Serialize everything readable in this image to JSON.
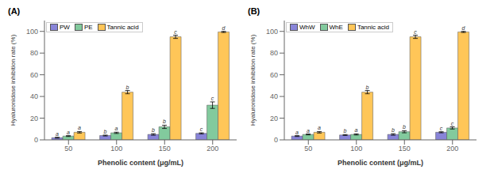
{
  "chart_data": [
    {
      "type": "bar",
      "title": "(A)",
      "xlabel": "Phenolic  content (μg/mL)",
      "ylabel": "Hyaluronidase inhibition rate (%)",
      "categories": [
        "50",
        "100",
        "150",
        "200"
      ],
      "series": [
        {
          "name": "PW",
          "values": [
            2.0,
            4.0,
            5.0,
            6.0
          ],
          "errors": [
            0.4,
            0.4,
            0.7,
            0.5
          ],
          "letters": [
            "a",
            "b",
            "b",
            "c"
          ]
        },
        {
          "name": "PE",
          "values": [
            3.5,
            6.5,
            12.0,
            32.0
          ],
          "errors": [
            0.4,
            0.6,
            1.5,
            3.0
          ],
          "letters": [
            "a",
            "a",
            "b",
            "c"
          ]
        },
        {
          "name": "Tannic acid",
          "values": [
            7.0,
            44.0,
            95.0,
            99.5
          ],
          "errors": [
            0.7,
            1.5,
            1.5,
            0.5
          ],
          "letters": [
            "a",
            "b",
            "c",
            "d"
          ]
        }
      ],
      "ylim": [
        0,
        110
      ],
      "yticks": [
        0,
        20,
        40,
        60,
        80,
        100
      ],
      "legend": "upper left",
      "grid": false
    },
    {
      "type": "bar",
      "title": "(B)",
      "xlabel": "Phenolic  content (μg/mL)",
      "ylabel": "Hyaluronidase inhibition rate (%)",
      "categories": [
        "50",
        "100",
        "150",
        "200"
      ],
      "series": [
        {
          "name": "WhW",
          "values": [
            3.5,
            4.5,
            5.0,
            7.0
          ],
          "errors": [
            0.4,
            0.4,
            0.7,
            0.5
          ],
          "letters": [
            "a",
            "b",
            "b",
            "c"
          ]
        },
        {
          "name": "WhE",
          "values": [
            5.0,
            5.0,
            7.5,
            11.0
          ],
          "errors": [
            0.4,
            0.5,
            1.0,
            1.0
          ],
          "letters": [
            "a",
            "a",
            "b",
            "c"
          ]
        },
        {
          "name": "Tannic acid",
          "values": [
            7.0,
            44.0,
            95.0,
            99.5
          ],
          "errors": [
            0.7,
            1.5,
            1.5,
            0.5
          ],
          "letters": [
            "a",
            "b",
            "c",
            "d"
          ]
        }
      ],
      "ylim": [
        0,
        110
      ],
      "yticks": [
        0,
        20,
        40,
        60,
        80,
        100
      ],
      "legend": "upper left",
      "grid": false
    }
  ]
}
